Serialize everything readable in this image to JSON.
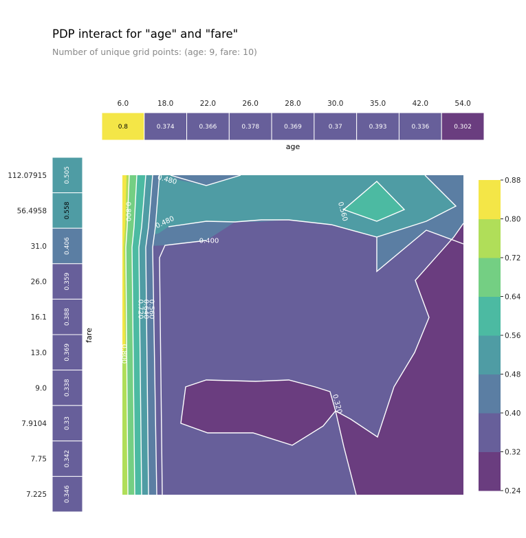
{
  "title": "PDP interact for \"age\" and \"fare\"",
  "subtitle": "Number of unique grid points: (age: 9, fare: 10)",
  "colors": {
    "scale": [
      "#6a3d7f",
      "#675f9a",
      "#5b7ea3",
      "#4f9ca4",
      "#4cbaa2",
      "#74cf83",
      "#b0de59",
      "#f4e647"
    ]
  },
  "chart_data": [
    {
      "type": "heatmap",
      "name": "age-strip",
      "xlabel": "age",
      "categories": [
        "6.0",
        "18.0",
        "22.0",
        "26.0",
        "28.0",
        "30.0",
        "35.0",
        "42.0",
        "54.0"
      ],
      "values": [
        0.8,
        0.374,
        0.366,
        0.378,
        0.369,
        0.37,
        0.393,
        0.336,
        0.302
      ],
      "value_labels": [
        "0.8",
        "0.374",
        "0.366",
        "0.378",
        "0.369",
        "0.37",
        "0.393",
        "0.336",
        "0.302"
      ]
    },
    {
      "type": "heatmap",
      "name": "fare-strip",
      "ylabel": "fare",
      "categories": [
        "112.07915",
        "56.4958",
        "31.0",
        "26.0",
        "16.1",
        "13.0",
        "9.0",
        "7.9104",
        "7.75",
        "7.225"
      ],
      "values": [
        0.505,
        0.558,
        0.406,
        0.359,
        0.388,
        0.369,
        0.338,
        0.33,
        0.342,
        0.346
      ],
      "value_labels": [
        "0.505",
        "0.558",
        "0.406",
        "0.359",
        "0.388",
        "0.369",
        "0.338",
        "0.33",
        "0.342",
        "0.346"
      ]
    },
    {
      "type": "contour",
      "name": "interaction-contour",
      "levels": [
        0.24,
        0.32,
        0.4,
        0.48,
        0.56,
        0.64,
        0.72,
        0.8,
        0.88
      ],
      "colorbar_ticks": [
        "0.88",
        "0.80",
        "0.72",
        "0.64",
        "0.56",
        "0.48",
        "0.40",
        "0.32",
        "0.24"
      ],
      "contour_labels": [
        "0.480",
        "0.800",
        "0.480",
        "0.400",
        "0.560",
        "0.560",
        "0.640",
        "0.720",
        "0.800",
        "0.320"
      ]
    }
  ]
}
